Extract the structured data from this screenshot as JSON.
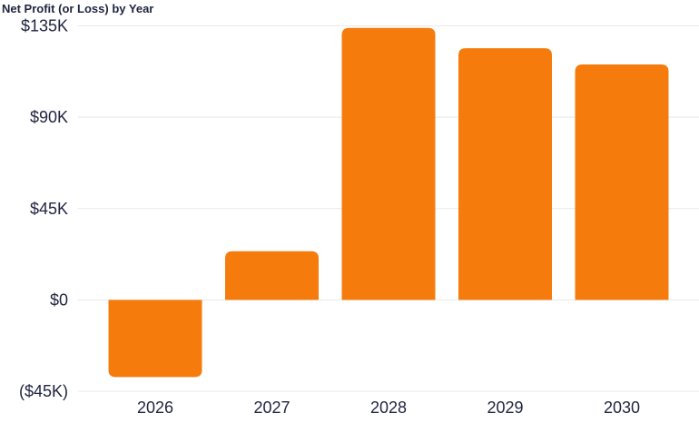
{
  "chart_data": {
    "type": "bar",
    "title": "Net Profit (or Loss) by Year",
    "xlabel": "",
    "ylabel": "",
    "categories": [
      "2026",
      "2027",
      "2028",
      "2029",
      "2030"
    ],
    "values": [
      -38000,
      24000,
      134000,
      124000,
      116000
    ],
    "ylim": [
      -45000,
      135000
    ],
    "yticks": [
      135000,
      90000,
      45000,
      0,
      -45000
    ],
    "ytick_labels": [
      "$135K",
      "$90K",
      "$45K",
      "$0",
      "($45K)"
    ],
    "grid": true,
    "bar_color": "#f57c0c",
    "grid_color": "#e8e8ee",
    "text_color": "#1f2440"
  }
}
